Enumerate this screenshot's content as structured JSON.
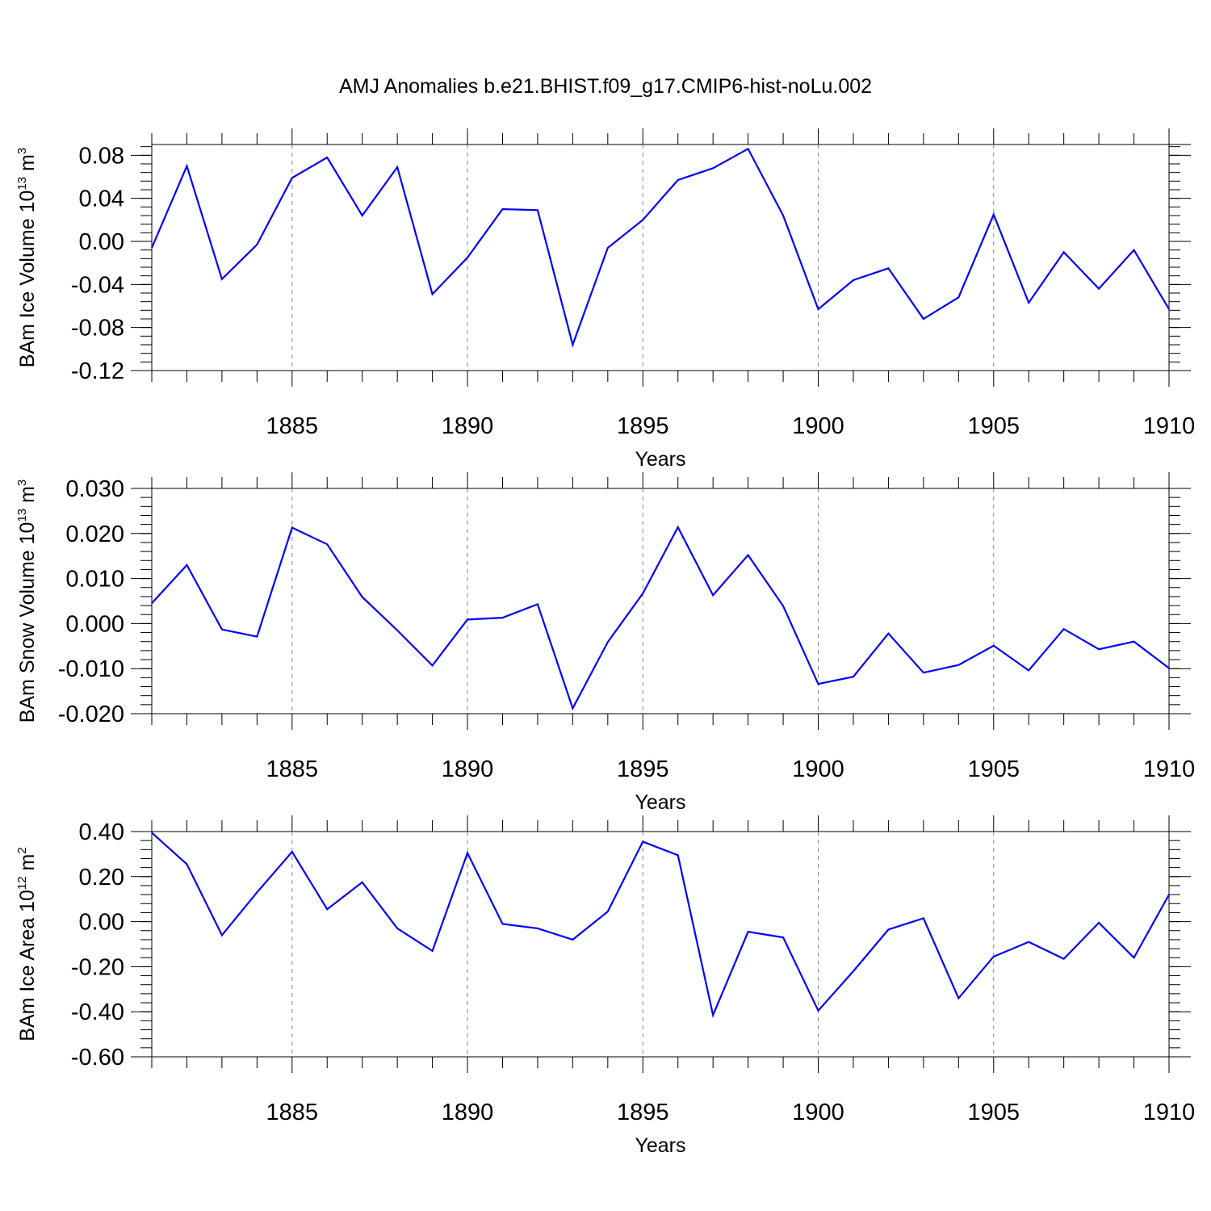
{
  "title": "AMJ Anomalies b.e21.BHIST.f09_g17.CMIP6-hist-noLu.002",
  "line_color": "#0000ff",
  "chart_data": [
    {
      "type": "line",
      "title": "",
      "xlabel": "Years",
      "ylabel_main": "BAm Ice Volume 10",
      "ylabel_exp": "13",
      "ylabel_unit": "m",
      "ylabel_unit_exp": "3",
      "xlim": [
        1881,
        1910
      ],
      "ylim": [
        -0.12,
        0.09
      ],
      "grid": "vertical dashed at labeled years",
      "x_ticks": [
        1885,
        1890,
        1895,
        1900,
        1905,
        1910
      ],
      "x_tick_labels": [
        "1885",
        "1890",
        "1895",
        "1900",
        "1905",
        "1910"
      ],
      "y_ticks": [
        0.08,
        0.04,
        0.0,
        -0.04,
        -0.08,
        -0.12
      ],
      "y_tick_labels": [
        "0.08",
        "0.04",
        "0.00",
        "-0.04",
        "-0.08",
        "-0.12"
      ],
      "x": [
        1881,
        1882,
        1883,
        1884,
        1885,
        1886,
        1887,
        1888,
        1889,
        1890,
        1891,
        1892,
        1893,
        1894,
        1895,
        1896,
        1897,
        1898,
        1899,
        1900,
        1901,
        1902,
        1903,
        1904,
        1905,
        1906,
        1907,
        1908,
        1909,
        1910
      ],
      "y": [
        -0.006,
        0.07,
        -0.035,
        -0.003,
        0.059,
        0.078,
        0.024,
        0.069,
        -0.049,
        -0.015,
        0.03,
        0.029,
        -0.096,
        -0.006,
        0.02,
        0.057,
        0.068,
        0.086,
        0.024,
        -0.063,
        -0.036,
        -0.025,
        -0.072,
        -0.052,
        0.025,
        -0.057,
        -0.01,
        -0.044,
        -0.008,
        -0.063
      ]
    },
    {
      "type": "line",
      "title": "",
      "xlabel": "Years",
      "ylabel_main": "BAm Snow Volume 10",
      "ylabel_exp": "13",
      "ylabel_unit": "m",
      "ylabel_unit_exp": "3",
      "xlim": [
        1881,
        1910
      ],
      "ylim": [
        -0.02,
        0.03
      ],
      "grid": "vertical dashed at labeled years",
      "x_ticks": [
        1885,
        1890,
        1895,
        1900,
        1905,
        1910
      ],
      "x_tick_labels": [
        "1885",
        "1890",
        "1895",
        "1900",
        "1905",
        "1910"
      ],
      "y_ticks": [
        0.03,
        0.02,
        0.01,
        0.0,
        -0.01,
        -0.02
      ],
      "y_tick_labels": [
        "0.030",
        "0.020",
        "0.010",
        "0.000",
        "-0.010",
        "-0.020"
      ],
      "x": [
        1881,
        1882,
        1883,
        1884,
        1885,
        1886,
        1887,
        1888,
        1889,
        1890,
        1891,
        1892,
        1893,
        1894,
        1895,
        1896,
        1897,
        1898,
        1899,
        1900,
        1901,
        1902,
        1903,
        1904,
        1905,
        1906,
        1907,
        1908,
        1909,
        1910
      ],
      "y": [
        0.0045,
        0.013,
        -0.0013,
        -0.0029,
        0.0213,
        0.0176,
        0.0059,
        -0.0015,
        -0.0093,
        0.0009,
        0.0013,
        0.0043,
        -0.0188,
        -0.0041,
        0.0067,
        0.0214,
        0.0063,
        0.0152,
        0.0039,
        -0.0134,
        -0.0118,
        -0.0022,
        -0.0109,
        -0.0092,
        -0.0049,
        -0.0104,
        -0.0012,
        -0.0057,
        -0.004,
        -0.0099
      ]
    },
    {
      "type": "line",
      "title": "",
      "xlabel": "Years",
      "ylabel_main": "BAm Ice Area 10",
      "ylabel_exp": "12",
      "ylabel_unit": "m",
      "ylabel_unit_exp": "2",
      "xlim": [
        1881,
        1910
      ],
      "ylim": [
        -0.6,
        0.4
      ],
      "grid": "vertical dashed at labeled years",
      "x_ticks": [
        1885,
        1890,
        1895,
        1900,
        1905,
        1910
      ],
      "x_tick_labels": [
        "1885",
        "1890",
        "1895",
        "1900",
        "1905",
        "1910"
      ],
      "y_ticks": [
        0.4,
        0.2,
        0.0,
        -0.2,
        -0.4,
        -0.6
      ],
      "y_tick_labels": [
        "0.40",
        "0.20",
        "0.00",
        "-0.20",
        "-0.40",
        "-0.60"
      ],
      "x": [
        1881,
        1882,
        1883,
        1884,
        1885,
        1886,
        1887,
        1888,
        1889,
        1890,
        1891,
        1892,
        1893,
        1894,
        1895,
        1896,
        1897,
        1898,
        1899,
        1900,
        1901,
        1902,
        1903,
        1904,
        1905,
        1906,
        1907,
        1908,
        1909,
        1910
      ],
      "y": [
        0.395,
        0.255,
        -0.06,
        0.13,
        0.31,
        0.055,
        0.175,
        -0.03,
        -0.13,
        0.305,
        -0.01,
        -0.03,
        -0.08,
        0.045,
        0.355,
        0.295,
        -0.415,
        -0.045,
        -0.07,
        -0.395,
        -0.22,
        -0.035,
        0.015,
        -0.34,
        -0.155,
        -0.09,
        -0.165,
        -0.005,
        -0.16,
        0.12
      ]
    }
  ]
}
